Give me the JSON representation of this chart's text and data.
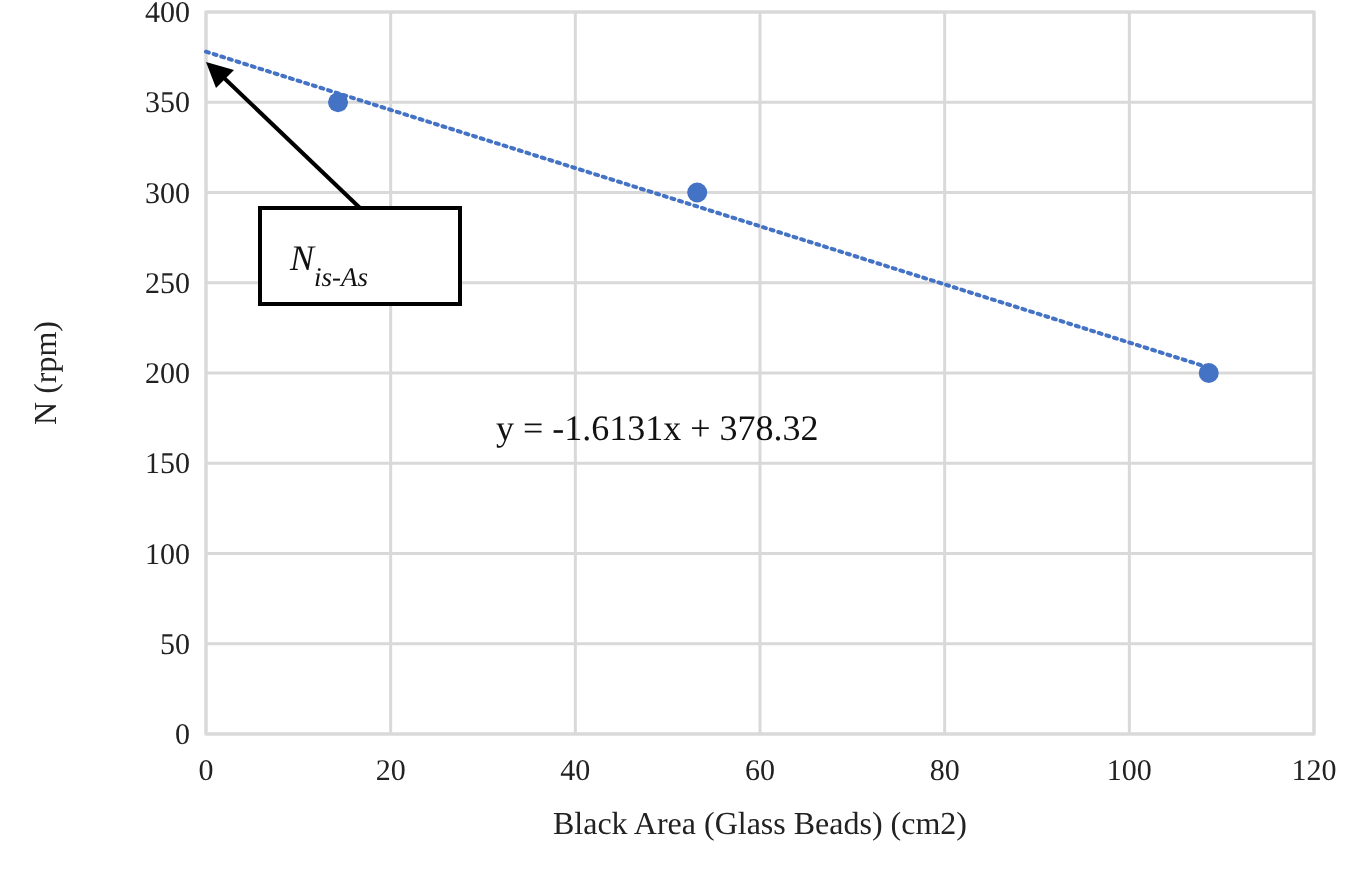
{
  "chart_data": {
    "type": "scatter",
    "xlabel": "Black Area (Glass Beads) (cm2)",
    "ylabel": "N (rpm)",
    "xlim": [
      0,
      120
    ],
    "xticks": [
      0,
      20,
      40,
      60,
      80,
      100,
      120
    ],
    "ylim": [
      0,
      400
    ],
    "yticks": [
      0,
      50,
      100,
      150,
      200,
      250,
      300,
      350,
      400
    ],
    "grid": true,
    "marker": "circle",
    "series": [
      {
        "color": "#4472c4",
        "x": [
          14.3,
          53.2,
          108.6
        ],
        "values": [
          350,
          300,
          200
        ]
      },
      {
        "type": "line",
        "color": "#4472c4",
        "line_style": "dotted",
        "marker": "none",
        "x": [
          0,
          108.6
        ],
        "values": [
          378,
          203
        ]
      }
    ],
    "annotations": [
      "N$_{is-As}$",
      "y = -1.6131x + 378.32"
    ]
  }
}
